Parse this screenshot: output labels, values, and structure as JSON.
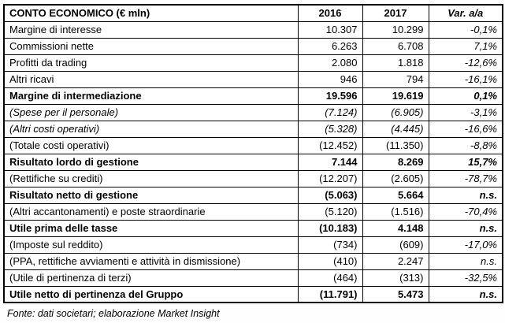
{
  "table": {
    "headers": {
      "title": "CONTO ECONOMICO (€ mln)",
      "col_2016": "2016",
      "col_2017": "2017",
      "col_var": "Var. a/a"
    },
    "rows": [
      {
        "label": "Margine di interesse",
        "y2016": "10.307",
        "y2017": "10.299",
        "var": "-0,1%",
        "bold": false,
        "italic": false
      },
      {
        "label": "Commissioni nette",
        "y2016": "6.263",
        "y2017": "6.708",
        "var": "7,1%",
        "bold": false,
        "italic": false
      },
      {
        "label": "Profitti da trading",
        "y2016": "2.080",
        "y2017": "1.818",
        "var": "-12,6%",
        "bold": false,
        "italic": false
      },
      {
        "label": "Altri ricavi",
        "y2016": "946",
        "y2017": "794",
        "var": "-16,1%",
        "bold": false,
        "italic": false
      },
      {
        "label": "Margine di intermediazione",
        "y2016": "19.596",
        "y2017": "19.619",
        "var": "0,1%",
        "bold": true,
        "italic": false
      },
      {
        "label": "(Spese per il personale)",
        "y2016": "(7.124)",
        "y2017": "(6.905)",
        "var": "-3,1%",
        "bold": false,
        "italic": true
      },
      {
        "label": "(Altri costi operativi)",
        "y2016": "(5.328)",
        "y2017": "(4.445)",
        "var": "-16,6%",
        "bold": false,
        "italic": true
      },
      {
        "label": "(Totale costi operativi)",
        "y2016": "(12.452)",
        "y2017": "(11.350)",
        "var": "-8,8%",
        "bold": false,
        "italic": false
      },
      {
        "label": "Risultato lordo di gestione",
        "y2016": "7.144",
        "y2017": "8.269",
        "var": "15,7%",
        "bold": true,
        "italic": false
      },
      {
        "label": "(Rettifiche su crediti)",
        "y2016": "(12.207)",
        "y2017": "(2.605)",
        "var": "-78,7%",
        "bold": false,
        "italic": false
      },
      {
        "label": "Risultato netto di gestione",
        "y2016": "(5.063)",
        "y2017": "5.664",
        "var": "n.s.",
        "bold": true,
        "italic": false
      },
      {
        "label": "(Altri accantonamenti) e poste straordinarie",
        "y2016": "(5.120)",
        "y2017": "(1.516)",
        "var": "-70,4%",
        "bold": false,
        "italic": false
      },
      {
        "label": "Utile prima delle tasse",
        "y2016": "(10.183)",
        "y2017": "4.148",
        "var": "n.s.",
        "bold": true,
        "italic": false
      },
      {
        "label": "(Imposte sul reddito)",
        "y2016": "(734)",
        "y2017": "(609)",
        "var": "-17,0%",
        "bold": false,
        "italic": false
      },
      {
        "label": "(PPA, rettifiche avviamenti e attività in dismissione)",
        "y2016": "(410)",
        "y2017": "2.247",
        "var": "n.s.",
        "bold": false,
        "italic": false
      },
      {
        "label": "(Utile di pertinenza di terzi)",
        "y2016": "(464)",
        "y2017": "(313)",
        "var": "-32,5%",
        "bold": false,
        "italic": false
      },
      {
        "label": "Utile netto di pertinenza del Gruppo",
        "y2016": "(11.791)",
        "y2017": "5.473",
        "var": "n.s.",
        "bold": true,
        "italic": false
      }
    ]
  },
  "footer": {
    "source_note": "Fonte: dati societari; elaborazione Market Insight"
  },
  "colors": {
    "border": "#000000",
    "background": "#ffffff",
    "text": "#000000"
  }
}
